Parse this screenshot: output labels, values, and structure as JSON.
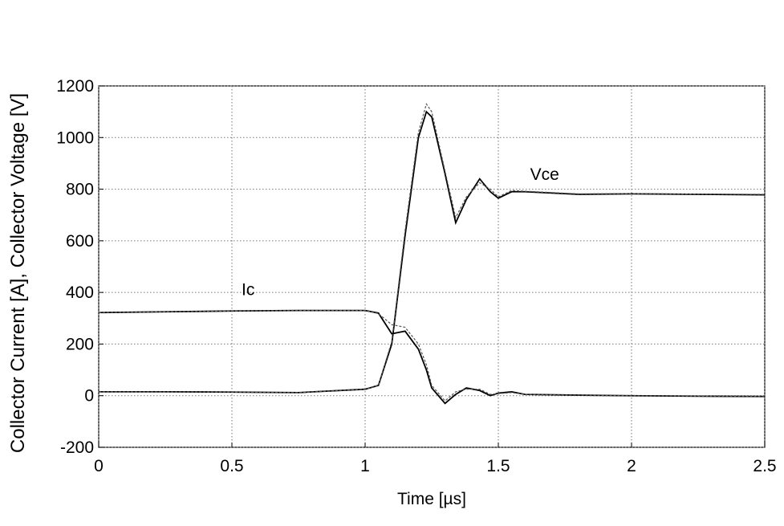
{
  "chart_data": {
    "type": "line",
    "x_label": "Time [µs]",
    "y_label": "Collector Current [A], Collector Voltage [V]",
    "x": [
      0,
      0.25,
      0.5,
      0.75,
      1.0,
      1.05,
      1.1,
      1.15,
      1.2,
      1.23,
      1.25,
      1.3,
      1.34,
      1.38,
      1.43,
      1.47,
      1.5,
      1.55,
      1.6,
      1.8,
      2.0,
      2.25,
      2.5
    ],
    "series": [
      {
        "name": "Vce",
        "color": "#000000",
        "dash": false,
        "values": [
          15,
          15,
          14,
          12,
          25,
          40,
          200,
          620,
          1000,
          1100,
          1080,
          860,
          670,
          760,
          840,
          790,
          765,
          790,
          790,
          780,
          782,
          780,
          778
        ]
      },
      {
        "color": "#555555",
        "dash": true,
        "values": [
          15,
          15,
          14,
          12,
          25,
          40,
          210,
          640,
          1020,
          1130,
          1100,
          870,
          690,
          770,
          825,
          800,
          770,
          795,
          792,
          782,
          783,
          781,
          780
        ]
      },
      {
        "name": "Ic",
        "color": "#000000",
        "dash": false,
        "values": [
          322,
          325,
          328,
          330,
          330,
          320,
          240,
          250,
          180,
          100,
          30,
          -30,
          5,
          30,
          20,
          0,
          10,
          15,
          5,
          2,
          0,
          -2,
          -3
        ]
      },
      {
        "color": "#555555",
        "dash": true,
        "values": [
          322,
          325,
          328,
          330,
          330,
          318,
          275,
          265,
          200,
          120,
          40,
          -20,
          15,
          25,
          25,
          5,
          8,
          12,
          5,
          2,
          0,
          -2,
          -3
        ]
      }
    ],
    "xlim": [
      0,
      2.5
    ],
    "xticks": [
      0,
      0.5,
      1,
      1.5,
      2,
      2.5
    ],
    "ylim": [
      -200,
      1200
    ],
    "yticks": [
      -200,
      0,
      200,
      400,
      600,
      800,
      1000,
      1200
    ],
    "grid": true
  }
}
